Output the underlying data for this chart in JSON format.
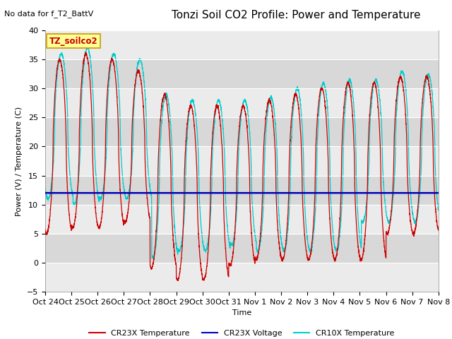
{
  "title": "Tonzi Soil CO2 Profile: Power and Temperature",
  "subtitle": "No data for f_T2_BattV",
  "ylabel": "Power (V) / Temperature (C)",
  "xlabel": "Time",
  "ylim": [
    -5,
    40
  ],
  "yticks": [
    -5,
    0,
    5,
    10,
    15,
    20,
    25,
    30,
    35,
    40
  ],
  "x_tick_labels": [
    "Oct 24",
    "Oct 25",
    "Oct 26",
    "Oct 27",
    "Oct 28",
    "Oct 29",
    "Oct 30",
    "Oct 31",
    "Nov 1",
    "Nov 2",
    "Nov 3",
    "Nov 4",
    "Nov 5",
    "Nov 6",
    "Nov 7",
    "Nov 8"
  ],
  "cr23x_temp_color": "#cc0000",
  "cr23x_volt_color": "#0000bb",
  "cr10x_temp_color": "#00cccc",
  "cr23x_volt_value": 12.0,
  "background_color": "#ffffff",
  "plot_bg_color": "#d8d8d8",
  "legend_box_color": "#ffff99",
  "legend_box_edge": "#cc9900",
  "annotation_text": "TZ_soilco2",
  "title_fontsize": 11,
  "label_fontsize": 8,
  "tick_fontsize": 8
}
